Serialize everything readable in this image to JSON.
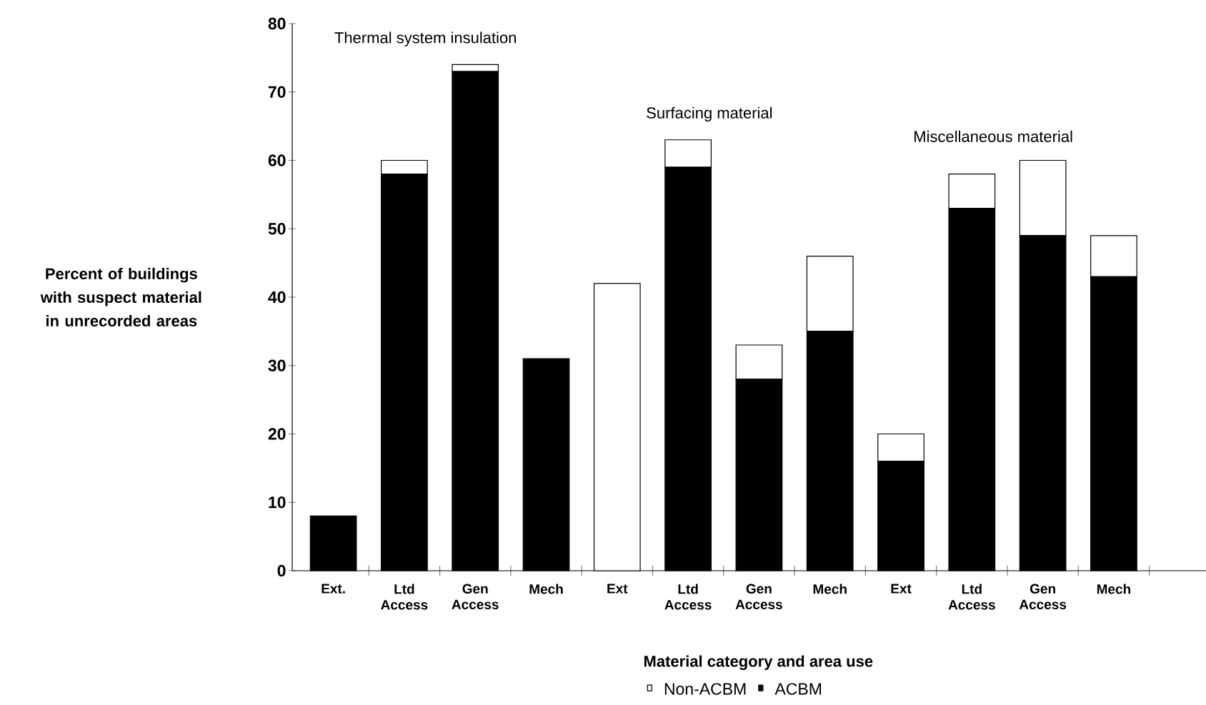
{
  "chart_data": {
    "type": "bar",
    "stacked": true,
    "xlabel": "Material category and area use",
    "ylabel": "Percent of buildings with suspect material in unrecorded areas",
    "categories": [
      "Ext.",
      "Ltd Access",
      "Gen Access",
      "Mech",
      "Ext",
      "Ltd Access",
      "Gen Access",
      "Mech",
      "Ext",
      "Ltd Access",
      "Gen Access",
      "Mech"
    ],
    "series": [
      {
        "name": "ACBM",
        "color": "#000000",
        "values": [
          8,
          58,
          73,
          31,
          0,
          59,
          28,
          35,
          16,
          53,
          49,
          43
        ]
      },
      {
        "name": "Non-ACBM",
        "color": "#ffffff",
        "values": [
          0,
          2,
          1,
          0,
          42,
          4,
          5,
          11,
          4,
          5,
          11,
          6
        ]
      }
    ],
    "annotations": [
      "Thermal system insulation",
      "Surfacing material",
      "Miscellaneous material"
    ],
    "ylim": [
      0,
      80
    ],
    "yticks": [
      0,
      10,
      20,
      30,
      40,
      50,
      60,
      70,
      80
    ],
    "grid": false,
    "legend": "bottom"
  }
}
